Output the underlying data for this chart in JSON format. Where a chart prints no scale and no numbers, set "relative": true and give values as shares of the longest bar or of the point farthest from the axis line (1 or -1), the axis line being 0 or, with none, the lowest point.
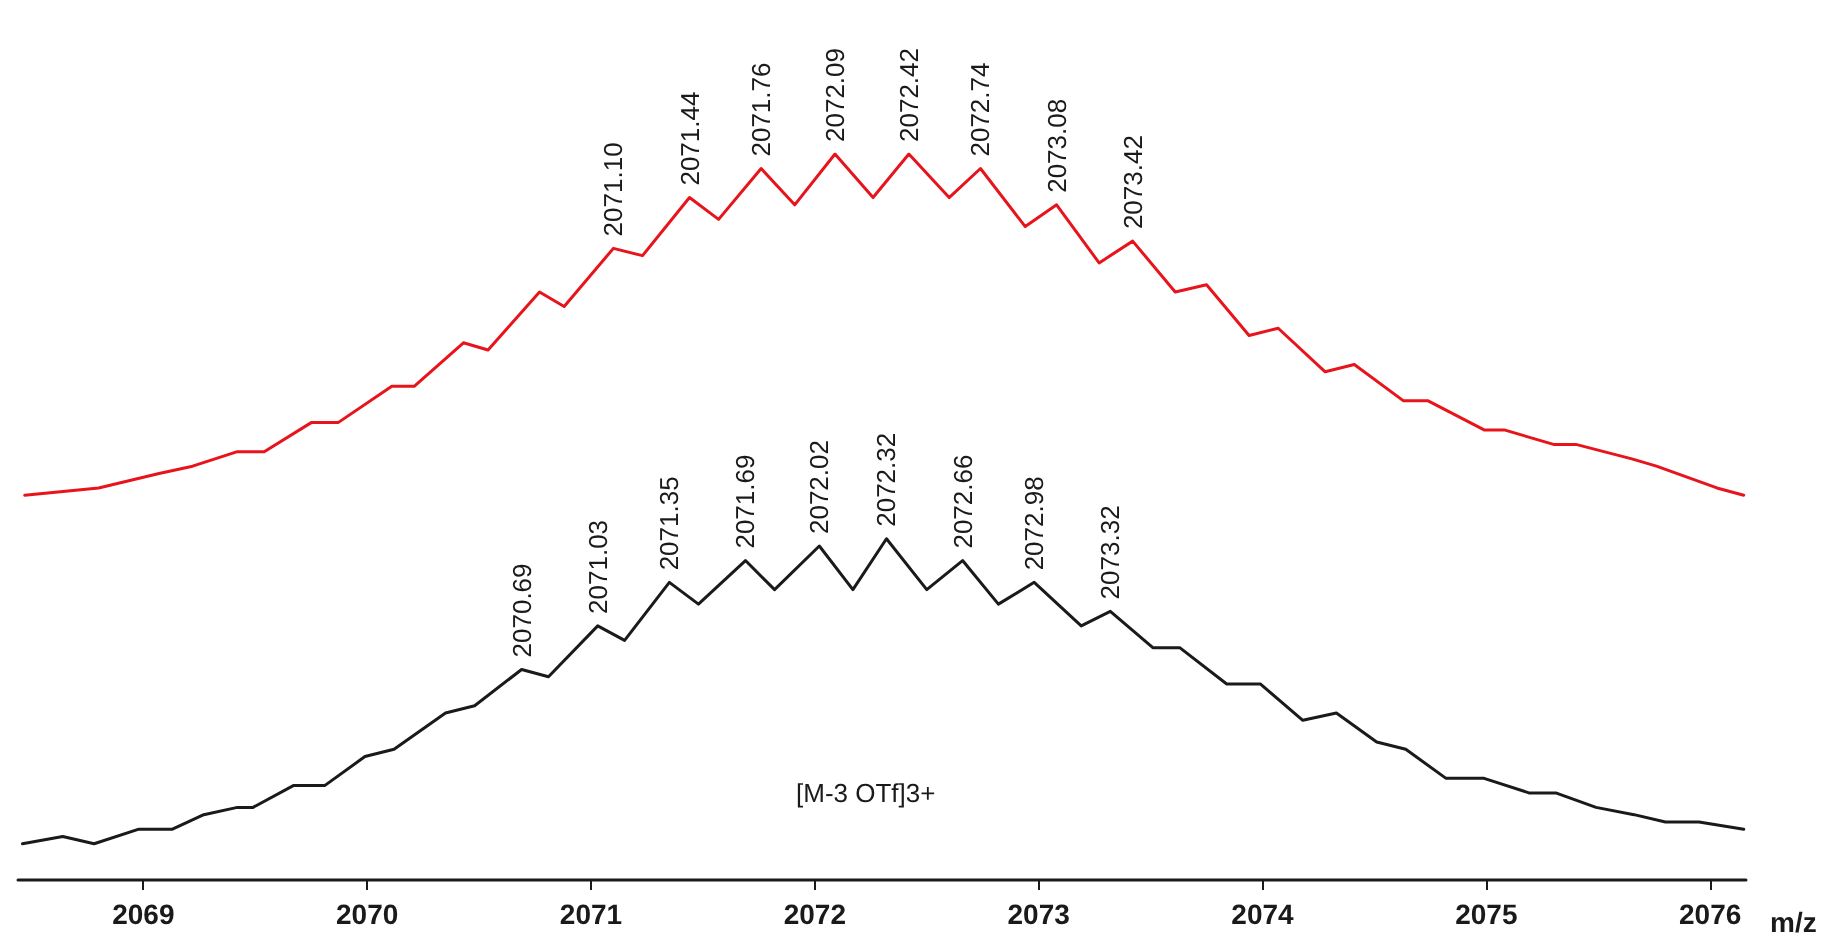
{
  "chart_data": {
    "type": "line",
    "relative": true,
    "xlim": [
      2068.44,
      2076.16
    ],
    "xticks": [
      2069,
      2070,
      2071,
      2072,
      2073,
      2074,
      2075,
      2076
    ],
    "tick_labels": "x",
    "xlabel": "m/z",
    "marker": "none",
    "line_style": "solid",
    "series": [
      {
        "color": "#e8141c",
        "x": [
          2068.47,
          2068.8,
          2069.07,
          2069.22,
          2069.42,
          2069.54,
          2069.75,
          2069.87,
          2070.11,
          2070.21,
          2070.43,
          2070.54,
          2070.77,
          2070.88,
          2071.1,
          2071.23,
          2071.44,
          2071.57,
          2071.76,
          2071.91,
          2072.09,
          2072.26,
          2072.42,
          2072.6,
          2072.74,
          2072.94,
          2073.08,
          2073.27,
          2073.42,
          2073.61,
          2073.75,
          2073.94,
          2074.07,
          2074.28,
          2074.41,
          2074.63,
          2074.74,
          2074.99,
          2075.08,
          2075.3,
          2075.4,
          2075.65,
          2075.76,
          2076.03,
          2076.15
        ],
        "values": [
          0.53,
          0.54,
          0.56,
          0.57,
          0.59,
          0.59,
          0.63,
          0.63,
          0.68,
          0.68,
          0.74,
          0.73,
          0.81,
          0.79,
          0.87,
          0.86,
          0.94,
          0.91,
          0.98,
          0.93,
          1.0,
          0.94,
          1.0,
          0.94,
          0.98,
          0.9,
          0.93,
          0.85,
          0.88,
          0.81,
          0.82,
          0.75,
          0.76,
          0.7,
          0.71,
          0.66,
          0.66,
          0.62,
          0.62,
          0.6,
          0.6,
          0.58,
          0.57,
          0.54,
          0.53
        ]
      },
      {
        "color": "#1a1a1a",
        "x": [
          2068.46,
          2068.64,
          2068.78,
          2068.98,
          2069.13,
          2069.27,
          2069.42,
          2069.49,
          2069.67,
          2069.81,
          2069.99,
          2070.12,
          2070.35,
          2070.48,
          2070.69,
          2070.81,
          2071.03,
          2071.15,
          2071.35,
          2071.48,
          2071.69,
          2071.82,
          2072.02,
          2072.17,
          2072.32,
          2072.5,
          2072.66,
          2072.82,
          2072.98,
          2073.19,
          2073.32,
          2073.51,
          2073.63,
          2073.84,
          2073.99,
          2074.18,
          2074.33,
          2074.51,
          2074.64,
          2074.82,
          2074.99,
          2075.19,
          2075.31,
          2075.49,
          2075.66,
          2075.8,
          2075.95,
          2076.15
        ],
        "values": [
          0.05,
          0.06,
          0.05,
          0.07,
          0.07,
          0.09,
          0.1,
          0.1,
          0.13,
          0.13,
          0.17,
          0.18,
          0.23,
          0.24,
          0.29,
          0.28,
          0.35,
          0.33,
          0.41,
          0.38,
          0.44,
          0.4,
          0.46,
          0.4,
          0.47,
          0.4,
          0.44,
          0.38,
          0.41,
          0.35,
          0.37,
          0.32,
          0.32,
          0.27,
          0.27,
          0.22,
          0.23,
          0.19,
          0.18,
          0.14,
          0.14,
          0.12,
          0.12,
          0.1,
          0.09,
          0.08,
          0.08,
          0.07
        ]
      }
    ],
    "annotations": [
      {
        "text": "2071.10",
        "x": 2071.1,
        "y": 0.87
      },
      {
        "text": "2071.44",
        "x": 2071.44,
        "y": 0.94
      },
      {
        "text": "2071.76",
        "x": 2071.76,
        "y": 0.98
      },
      {
        "text": "2072.09",
        "x": 2072.09,
        "y": 1.0
      },
      {
        "text": "2072.42",
        "x": 2072.42,
        "y": 1.0
      },
      {
        "text": "2072.74",
        "x": 2072.74,
        "y": 0.98
      },
      {
        "text": "2073.08",
        "x": 2073.08,
        "y": 0.93
      },
      {
        "text": "2073.42",
        "x": 2073.42,
        "y": 0.88
      },
      {
        "text": "2070.69",
        "x": 2070.69,
        "y": 0.29
      },
      {
        "text": "2071.03",
        "x": 2071.03,
        "y": 0.35
      },
      {
        "text": "2071.35",
        "x": 2071.35,
        "y": 0.41
      },
      {
        "text": "2071.69",
        "x": 2071.69,
        "y": 0.44
      },
      {
        "text": "2072.02",
        "x": 2072.02,
        "y": 0.46
      },
      {
        "text": "2072.32",
        "x": 2072.32,
        "y": 0.47
      },
      {
        "text": "2072.66",
        "x": 2072.66,
        "y": 0.44
      },
      {
        "text": "2072.98",
        "x": 2072.98,
        "y": 0.41
      },
      {
        "text": "2073.32",
        "x": 2073.32,
        "y": 0.37
      },
      "[M-3 OTf]3+"
    ]
  }
}
